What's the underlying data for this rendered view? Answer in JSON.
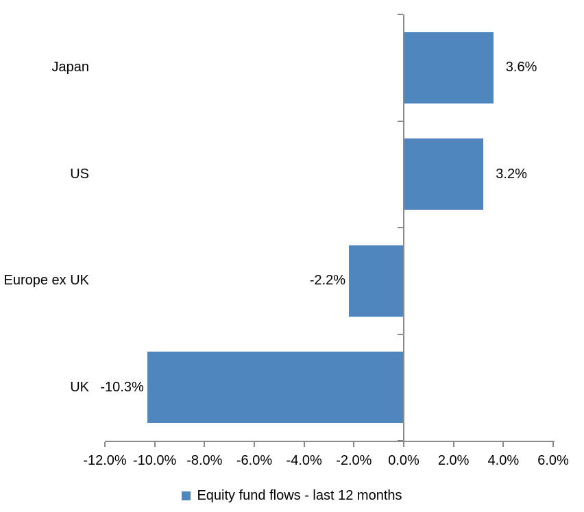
{
  "chart_data": {
    "type": "bar",
    "orientation": "horizontal",
    "title": "",
    "categories": [
      "Japan",
      "US",
      "Europe ex UK",
      "UK"
    ],
    "series": [
      {
        "name": "Equity fund flows - last 12 months",
        "values": [
          3.6,
          3.2,
          -2.2,
          -10.3
        ]
      }
    ],
    "data_labels": [
      "3.6%",
      "3.2%",
      "-2.2%",
      "-10.3%"
    ],
    "x_axis": {
      "min": -12,
      "max": 6,
      "tick_step": 2,
      "tick_values": [
        -12,
        -10,
        -8,
        -6,
        -4,
        -2,
        0,
        2,
        4,
        6
      ],
      "tick_labels": [
        "-12.0%",
        "-10.0%",
        "-8.0%",
        "-6.0%",
        "-4.0%",
        "-2.0%",
        "0.0%",
        "2.0%",
        "4.0%",
        "6.0%"
      ]
    },
    "legend": {
      "label": "Equity fund flows - last 12 months",
      "position": "bottom",
      "marker": "square"
    },
    "colors": {
      "bar": "#4e86bd",
      "axis": "#8a8a8a",
      "text": "#000000",
      "background": "#ffffff"
    },
    "grid": false
  }
}
